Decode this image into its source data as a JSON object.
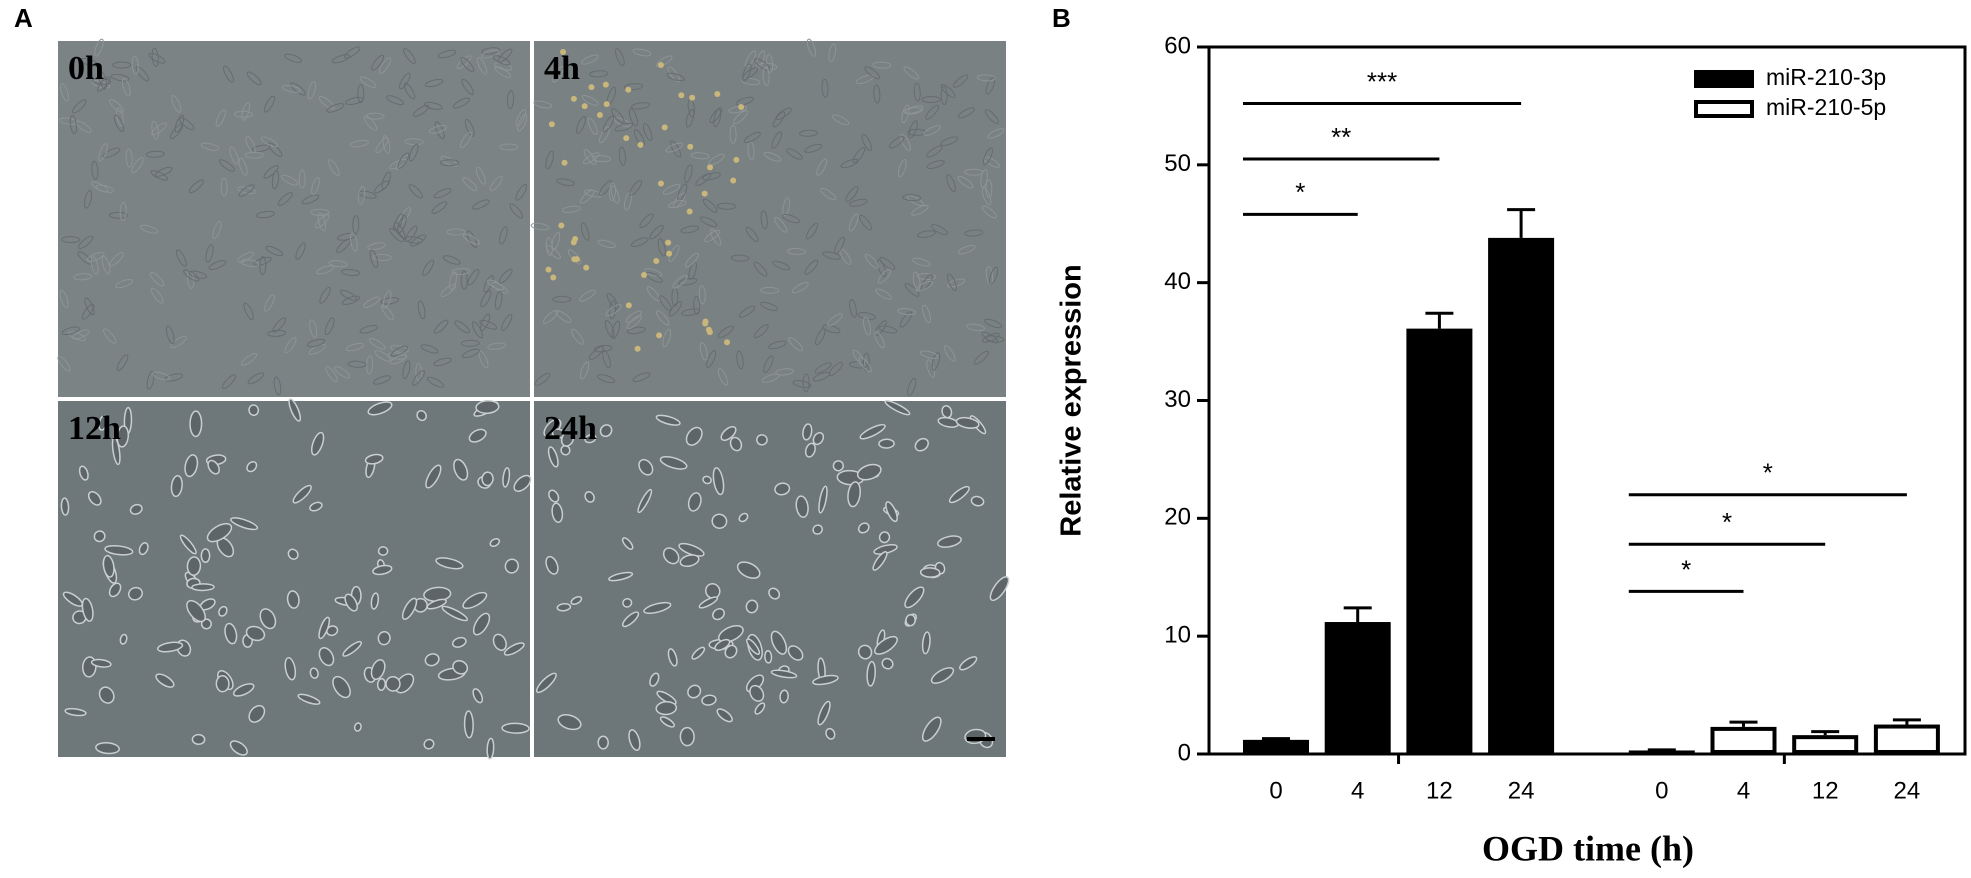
{
  "panel_a": {
    "label": "A",
    "images": [
      "0h",
      "4h",
      "12h",
      "24h"
    ]
  },
  "chart_data": {
    "type": "bar",
    "panel_label": "B",
    "x_label": "OGD time (h)",
    "y_label": "Relative expression",
    "categories": [
      "0",
      "4",
      "12",
      "24",
      "0",
      "4",
      "12",
      "24"
    ],
    "series": [
      {
        "name": "miR-210-3p",
        "color": "#000000",
        "fill": "#000000",
        "values": [
          1.2,
          11.2,
          36.1,
          43.8,
          null,
          null,
          null,
          null
        ],
        "errors": [
          0.1,
          1.2,
          1.3,
          2.4,
          null,
          null,
          null,
          null
        ]
      },
      {
        "name": "miR-210-5p",
        "color": "#000000",
        "fill": "#ffffff",
        "values": [
          null,
          null,
          null,
          null,
          0.3,
          2.3,
          1.6,
          2.5
        ],
        "errors": [
          null,
          null,
          null,
          null,
          0.05,
          0.4,
          0.3,
          0.4
        ]
      }
    ],
    "annotations": [
      {
        "text": "*",
        "from": 0,
        "to": 1,
        "y": 45.8
      },
      {
        "text": "**",
        "from": 0,
        "to": 2,
        "y": 50.5
      },
      {
        "text": "***",
        "from": 0,
        "to": 3,
        "y": 55.2
      },
      {
        "text": "*",
        "from": 4,
        "to": 5,
        "y": 13.8
      },
      {
        "text": "*",
        "from": 4,
        "to": 6,
        "y": 17.8
      },
      {
        "text": "*",
        "from": 4,
        "to": 7,
        "y": 22.0
      }
    ],
    "ylim": [
      0,
      60
    ],
    "yticks": [
      0,
      10,
      20,
      30,
      40,
      50,
      60
    ],
    "legend": "upper right"
  }
}
